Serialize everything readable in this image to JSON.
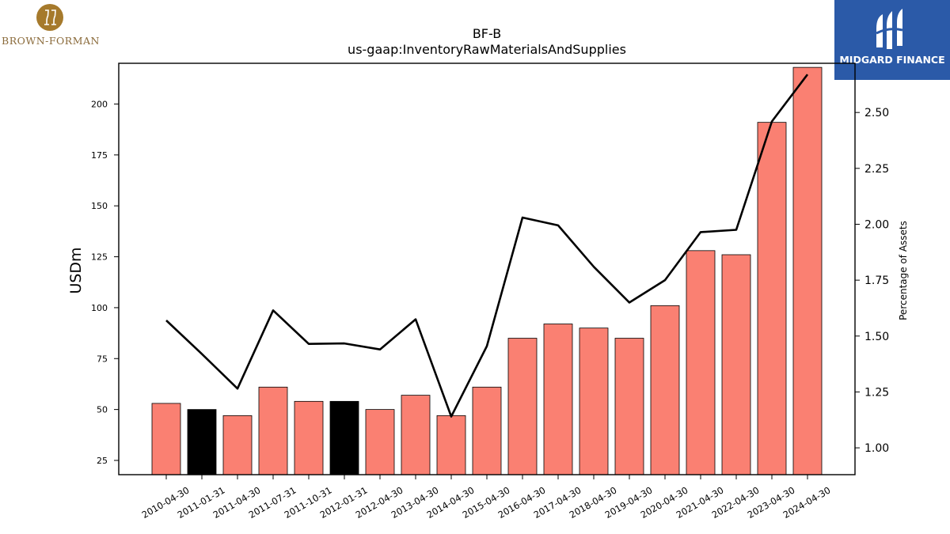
{
  "branding": {
    "left_logo_text": "BROWN-FORMAN",
    "right_logo_text": "MIDGARD FINANCE"
  },
  "colors": {
    "bar_default": "#fa8072",
    "bar_highlight": "#000000",
    "line": "#000000",
    "brand_blue": "#2b5aa8",
    "brand_gold": "#a67a2c"
  },
  "chart_data": {
    "type": "bar",
    "title": "BF-B",
    "subtitle": "us-gaap:InventoryRawMaterialsAndSupplies",
    "ylabel": "USDm",
    "y2label": "Percentage of Assets",
    "ylim": [
      18,
      220
    ],
    "y2lim": [
      0.88,
      2.72
    ],
    "yticks": [
      25,
      50,
      75,
      100,
      125,
      150,
      175,
      200
    ],
    "y2ticks": [
      1.0,
      1.25,
      1.5,
      1.75,
      2.0,
      2.25,
      2.5
    ],
    "y2tick_labels": [
      "1.00",
      "1.25",
      "1.50",
      "1.75",
      "2.00",
      "2.25",
      "2.50"
    ],
    "grid": false,
    "legend": "none",
    "categories": [
      "2010-04-30",
      "2011-01-31",
      "2011-04-30",
      "2011-07-31",
      "2011-10-31",
      "2012-01-31",
      "2012-04-30",
      "2013-04-30",
      "2014-04-30",
      "2015-04-30",
      "2016-04-30",
      "2017-04-30",
      "2018-04-30",
      "2019-04-30",
      "2020-04-30",
      "2021-04-30",
      "2022-04-30",
      "2023-04-30",
      "2024-04-30"
    ],
    "series": [
      {
        "type": "bar",
        "axis": "left",
        "values": [
          53,
          50,
          47,
          61,
          54,
          54,
          50,
          57,
          47,
          61,
          85,
          92,
          90,
          85,
          101,
          128,
          126,
          191,
          218
        ],
        "highlight": [
          false,
          true,
          false,
          false,
          false,
          true,
          false,
          false,
          false,
          false,
          false,
          false,
          false,
          false,
          false,
          false,
          false,
          false,
          false
        ]
      },
      {
        "type": "line",
        "axis": "right",
        "values": [
          1.57,
          1.42,
          1.265,
          1.615,
          1.465,
          1.467,
          1.44,
          1.575,
          1.14,
          1.455,
          2.03,
          1.995,
          1.81,
          1.65,
          1.75,
          1.965,
          1.975,
          2.46,
          2.67
        ]
      }
    ]
  }
}
